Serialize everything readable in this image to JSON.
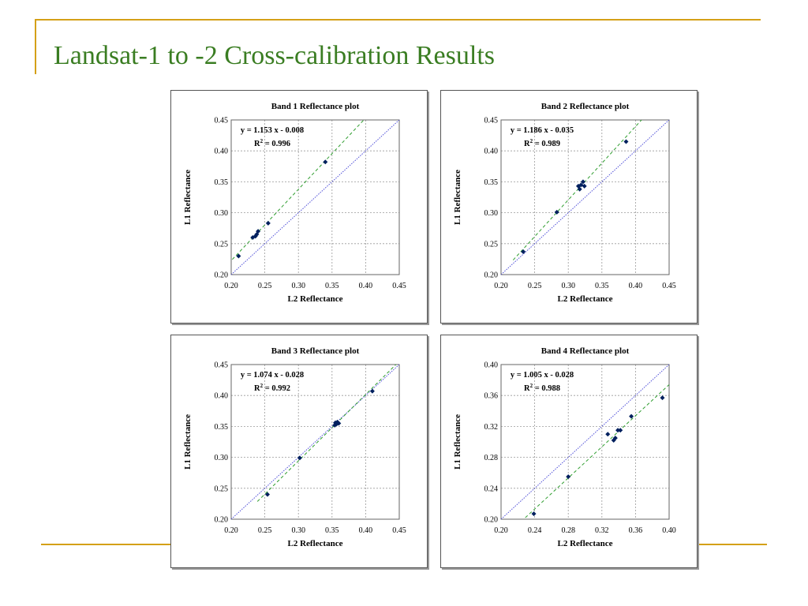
{
  "slide": {
    "title": "Landsat-1 to -2 Cross-calibration Results",
    "colors": {
      "title": "#3a7d22",
      "accent_line": "#d4a017"
    }
  },
  "chart_data": [
    {
      "type": "scatter",
      "title": "Band 1 Reflectance plot",
      "xlabel": "L2 Reflectance",
      "ylabel": "L1  Reflectance",
      "xlim": [
        0.2,
        0.45
      ],
      "ylim": [
        0.2,
        0.45
      ],
      "xticks": [
        "0.20",
        "0.25",
        "0.30",
        "0.35",
        "0.40",
        "0.45"
      ],
      "yticks": [
        "0.20",
        "0.25",
        "0.30",
        "0.35",
        "0.40",
        "0.45"
      ],
      "grid": true,
      "equation": "y = 1.153 x - 0.008",
      "r2_label": "R",
      "r2_value": " = 0.996",
      "fit": {
        "slope": 1.153,
        "intercept": -0.008,
        "color": "#2e9d2e"
      },
      "one_to_one_color": "#5050d8",
      "point_color": "#00205e",
      "points": [
        [
          0.211,
          0.23
        ],
        [
          0.232,
          0.26
        ],
        [
          0.236,
          0.262
        ],
        [
          0.238,
          0.265
        ],
        [
          0.24,
          0.27
        ],
        [
          0.255,
          0.283
        ],
        [
          0.34,
          0.382
        ]
      ]
    },
    {
      "type": "scatter",
      "title": "Band 2 Reflectance plot",
      "xlabel": "L2 Reflectance",
      "ylabel": "L1  Reflectance",
      "xlim": [
        0.2,
        0.45
      ],
      "ylim": [
        0.2,
        0.45
      ],
      "xticks": [
        "0.20",
        "0.25",
        "0.30",
        "0.35",
        "0.40",
        "0.45"
      ],
      "yticks": [
        "0.20",
        "0.25",
        "0.30",
        "0.35",
        "0.40",
        "0.45"
      ],
      "grid": true,
      "equation": "y = 1.186 x - 0.035",
      "r2_label": "R",
      "r2_value": " = 0.989",
      "fit": {
        "slope": 1.186,
        "intercept": -0.035,
        "color": "#2e9d2e"
      },
      "one_to_one_color": "#5050d8",
      "point_color": "#00205e",
      "points": [
        [
          0.233,
          0.237
        ],
        [
          0.283,
          0.301
        ],
        [
          0.315,
          0.343
        ],
        [
          0.317,
          0.338
        ],
        [
          0.319,
          0.345
        ],
        [
          0.322,
          0.35
        ],
        [
          0.324,
          0.343
        ],
        [
          0.386,
          0.415
        ]
      ]
    },
    {
      "type": "scatter",
      "title": "Band 3 Reflectance plot",
      "xlabel": "L2 Reflectance",
      "ylabel": "L1  Reflectance",
      "xlim": [
        0.2,
        0.45
      ],
      "ylim": [
        0.2,
        0.45
      ],
      "xticks": [
        "0.20",
        "0.25",
        "0.30",
        "0.35",
        "0.40",
        "0.45"
      ],
      "yticks": [
        "0.20",
        "0.25",
        "0.30",
        "0.35",
        "0.40",
        "0.45"
      ],
      "grid": true,
      "equation": "y = 1.074 x - 0.028",
      "r2_label": "R",
      "r2_value": " = 0.992",
      "fit": {
        "slope": 1.074,
        "intercept": -0.028,
        "color": "#2e9d2e"
      },
      "one_to_one_color": "#5050d8",
      "point_color": "#00205e",
      "points": [
        [
          0.254,
          0.24
        ],
        [
          0.302,
          0.299
        ],
        [
          0.354,
          0.352
        ],
        [
          0.355,
          0.356
        ],
        [
          0.357,
          0.354
        ],
        [
          0.358,
          0.357
        ],
        [
          0.36,
          0.355
        ],
        [
          0.41,
          0.407
        ]
      ]
    },
    {
      "type": "scatter",
      "title": "Band 4 Reflectance plot",
      "xlabel": "L2 Reflectance",
      "ylabel": "L1  Reflectance",
      "xlim": [
        0.2,
        0.4
      ],
      "ylim": [
        0.2,
        0.4
      ],
      "xticks": [
        "0.20",
        "0.24",
        "0.28",
        "0.32",
        "0.36",
        "0.40"
      ],
      "yticks": [
        "0.20",
        "0.24",
        "0.28",
        "0.32",
        "0.36",
        "0.40"
      ],
      "grid": true,
      "equation": "y = 1.005 x - 0.028",
      "r2_label": "R",
      "r2_value": " = 0.988",
      "fit": {
        "slope": 1.005,
        "intercept": -0.028,
        "color": "#2e9d2e"
      },
      "one_to_one_color": "#5050d8",
      "point_color": "#00205e",
      "points": [
        [
          0.239,
          0.207
        ],
        [
          0.28,
          0.255
        ],
        [
          0.327,
          0.31
        ],
        [
          0.334,
          0.302
        ],
        [
          0.336,
          0.305
        ],
        [
          0.339,
          0.315
        ],
        [
          0.342,
          0.315
        ],
        [
          0.355,
          0.333
        ],
        [
          0.392,
          0.357
        ]
      ]
    }
  ]
}
